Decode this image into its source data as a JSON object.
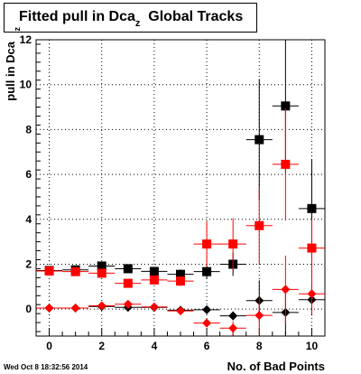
{
  "title": {
    "main": "Fitted pull in Dca",
    "sub": "z",
    "tail": "Global Tracks"
  },
  "footer": "Wed Oct  8 18:32:56 2014",
  "chart_data": {
    "type": "scatter",
    "xlabel": "No. of Bad Points",
    "ylabel": "pull in Dca",
    "ylabel_sub": "z",
    "xlim": [
      -0.5,
      10.5
    ],
    "ylim": [
      -1.2,
      12
    ],
    "xticks": [
      0,
      2,
      4,
      6,
      8,
      10
    ],
    "yticks": [
      0,
      2,
      4,
      6,
      8,
      10,
      12
    ],
    "grid": true,
    "series": [
      {
        "marker": "square",
        "color": "#000000",
        "x": [
          0,
          1,
          2,
          3,
          4,
          5,
          6,
          7,
          8,
          9,
          10
        ],
        "y": [
          1.72,
          1.75,
          1.92,
          1.8,
          1.68,
          1.55,
          1.67,
          2.0,
          7.55,
          9.05,
          4.48
        ],
        "err": [
          0.08,
          0.1,
          0.12,
          0.15,
          0.18,
          0.22,
          0.32,
          0.52,
          2.7,
          3.0,
          2.2
        ]
      },
      {
        "marker": "square",
        "color": "#ff0000",
        "x": [
          0,
          1,
          2,
          3,
          4,
          5,
          6,
          7,
          8,
          9,
          10
        ],
        "y": [
          1.7,
          1.67,
          1.6,
          1.15,
          1.3,
          1.25,
          2.9,
          2.9,
          3.72,
          6.45,
          2.72
        ],
        "err": [
          0.08,
          0.1,
          0.12,
          0.15,
          0.18,
          0.22,
          1.0,
          1.15,
          1.7,
          2.5,
          1.3
        ]
      },
      {
        "marker": "diamond",
        "color": "#000000",
        "x": [
          0,
          1,
          2,
          3,
          4,
          5,
          6,
          7,
          8,
          9,
          10
        ],
        "y": [
          0.05,
          0.05,
          0.12,
          0.08,
          0.08,
          -0.05,
          -0.03,
          -0.3,
          0.38,
          -0.15,
          0.42
        ],
        "err": [
          0.03,
          0.03,
          0.05,
          0.05,
          0.06,
          0.08,
          0.12,
          0.2,
          0.9,
          1.2,
          0.7
        ]
      },
      {
        "marker": "diamond",
        "color": "#ff0000",
        "x": [
          0,
          1,
          2,
          3,
          4,
          5,
          6,
          7,
          8,
          9,
          10
        ],
        "y": [
          0.05,
          0.05,
          0.15,
          0.22,
          0.1,
          -0.08,
          -0.62,
          -0.85,
          -0.28,
          0.88,
          0.68
        ],
        "err": [
          0.03,
          0.03,
          0.05,
          0.06,
          0.07,
          0.1,
          0.18,
          0.3,
          0.8,
          1.5,
          0.9
        ]
      }
    ]
  }
}
